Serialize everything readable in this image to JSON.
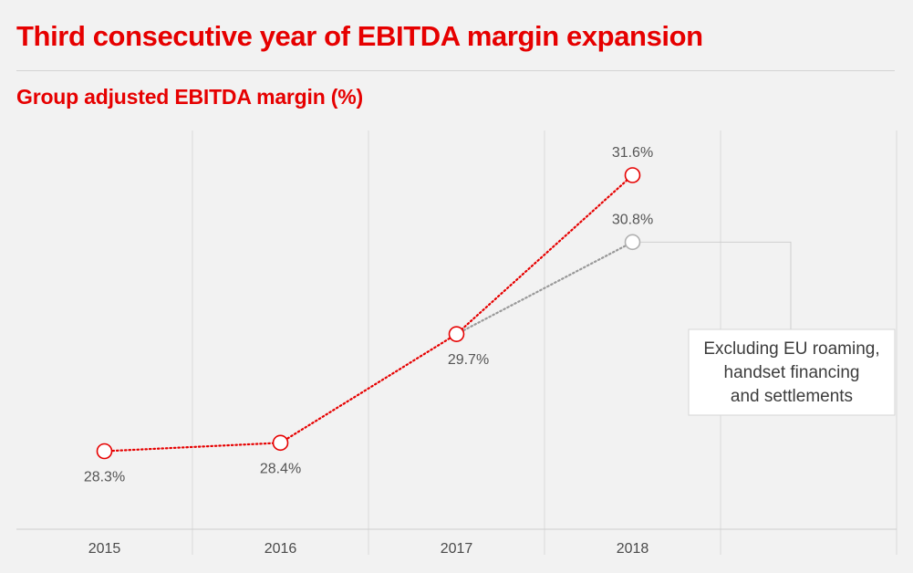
{
  "header": {
    "title": "Third consecutive year of EBITDA margin expansion",
    "subtitle": "Group adjusted EBITDA margin (%)"
  },
  "chart_data": {
    "type": "line",
    "title": "Group adjusted EBITDA margin (%)",
    "xlabel": "",
    "ylabel": "",
    "categories": [
      "2015",
      "2016",
      "2017",
      "2018"
    ],
    "ylim": [
      27.5,
      32.0
    ],
    "grid": "vertical",
    "series": [
      {
        "values": [
          28.3,
          28.4,
          29.7,
          31.6
        ],
        "labels": [
          "28.3%",
          "28.4%",
          "29.7%",
          "31.6%"
        ],
        "color": "#e60000",
        "line_style": "dotted"
      },
      {
        "values": [
          null,
          null,
          29.7,
          30.8
        ],
        "labels": [
          null,
          null,
          null,
          "30.8%"
        ],
        "color": "#999999",
        "line_style": "dotted"
      }
    ],
    "annotation": {
      "lines": [
        "Excluding EU roaming,",
        "handset financing",
        "and settlements"
      ],
      "points_to_series": 1
    }
  },
  "colors": {
    "accent": "#e60000",
    "secondary": "#999999",
    "background": "#f2f2f2"
  }
}
